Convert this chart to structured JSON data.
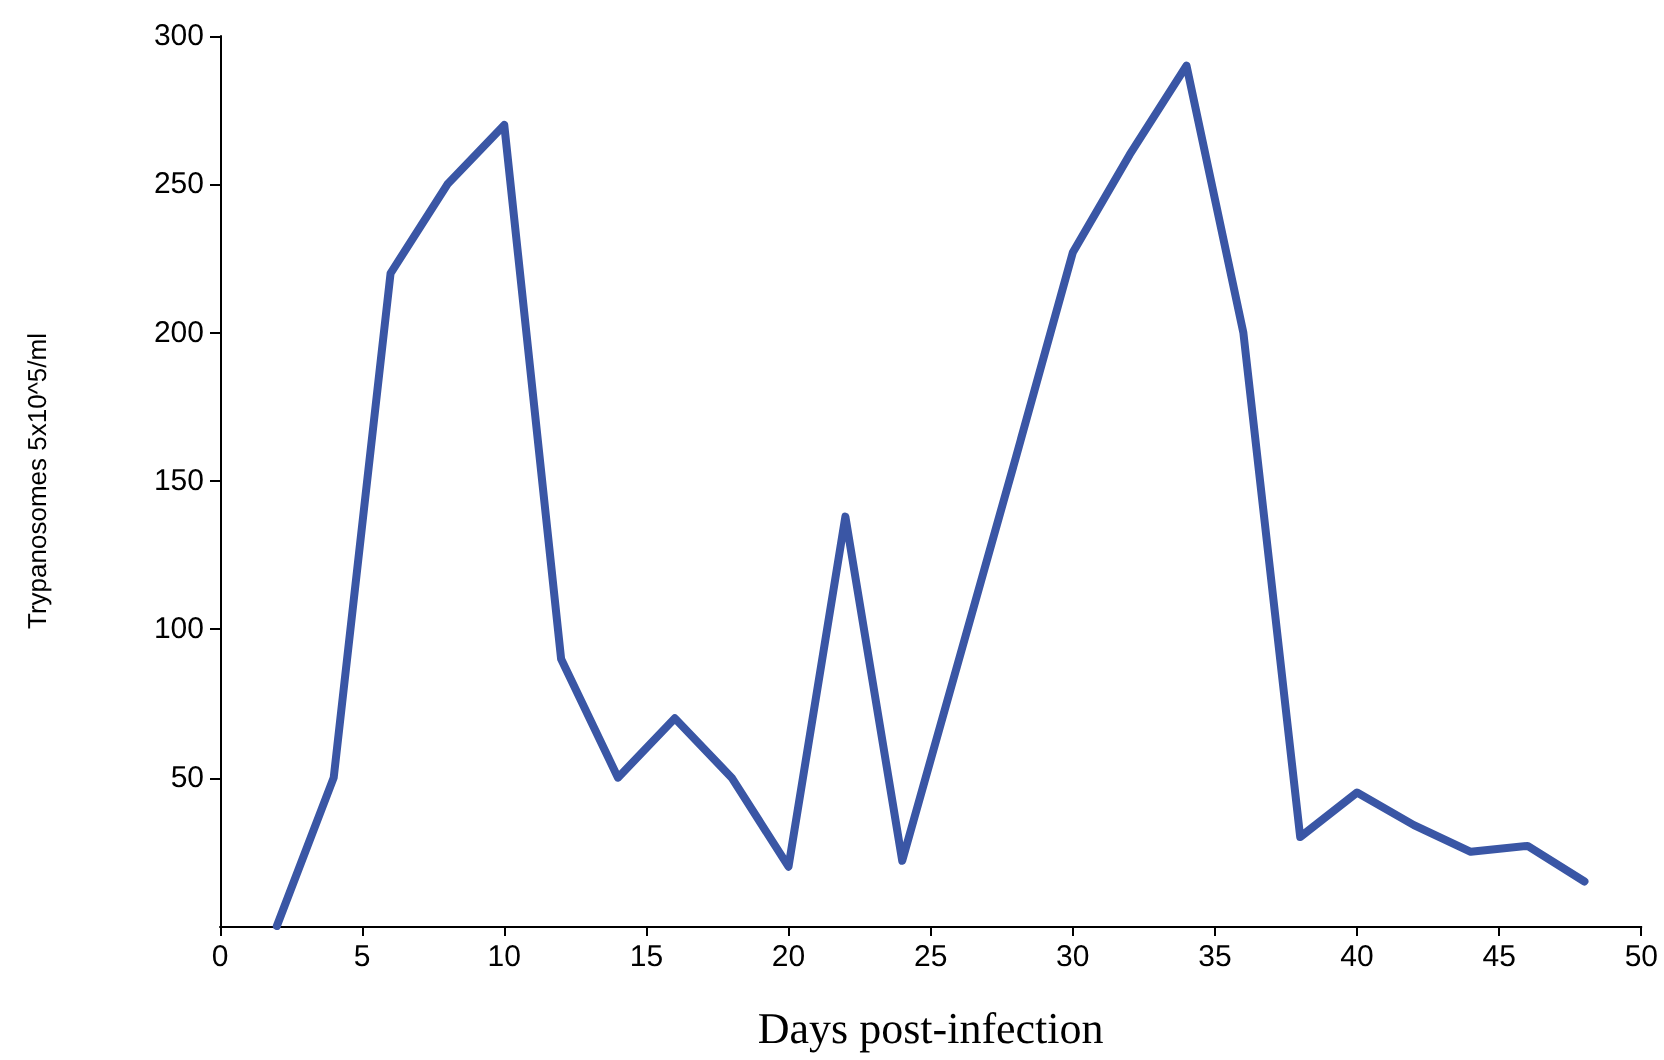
{
  "chart_data": {
    "type": "line",
    "xlabel": "Days post-infection",
    "ylabel": "Trypanosomes 5x10^5/ml",
    "x": [
      2,
      4,
      6,
      8,
      10,
      12,
      14,
      16,
      18,
      20,
      22,
      24,
      26,
      28,
      30,
      32,
      34,
      36,
      38,
      40,
      42,
      44,
      46,
      48
    ],
    "series": [
      {
        "color": "#3a56a5",
        "values": [
          0,
          50,
          220,
          250,
          270,
          90,
          50,
          70,
          50,
          20,
          138,
          22,
          90,
          158,
          227,
          260,
          290,
          200,
          30,
          45,
          34,
          25,
          27,
          15
        ]
      }
    ],
    "xlim": [
      0,
      50
    ],
    "xticks": [
      0,
      5,
      10,
      15,
      20,
      25,
      30,
      35,
      40,
      45,
      50
    ],
    "ylim": [
      0,
      300
    ],
    "yticks": [
      50,
      100,
      150,
      200,
      250,
      300
    ],
    "grid": false,
    "marker": "none",
    "line_style": "solid"
  }
}
